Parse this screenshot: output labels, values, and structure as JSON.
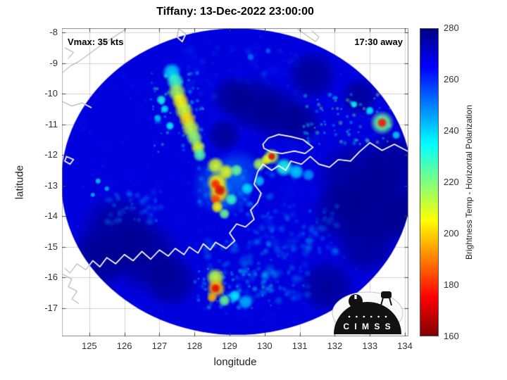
{
  "chart_data": {
    "type": "heatmap",
    "title": "Tiffany: 13-Dec-2022 23:00:00",
    "xlabel": "longitude",
    "ylabel": "latitude",
    "xlim": [
      124.22,
      134.1
    ],
    "ylim": [
      -17.92,
      -7.86
    ],
    "x_ticks": [
      125,
      126,
      127,
      128,
      129,
      130,
      131,
      132,
      133,
      134
    ],
    "y_ticks": [
      -8,
      -9,
      -10,
      -11,
      -12,
      -13,
      -14,
      -15,
      -16,
      -17
    ],
    "annotations": {
      "vmax": "Vmax: 35 kts",
      "eta": "17:30 away"
    },
    "grid_color": "#d2d2d2",
    "coast_color_inside": "#ffffff",
    "coast_color_outside": "#9a9a9a",
    "colorbar": {
      "label": "Brightness Temp - Horizontal Polarization",
      "range": [
        160,
        280
      ],
      "ticks": [
        280,
        260,
        240,
        220,
        200,
        180,
        160
      ],
      "stops": [
        {
          "color": "#000083",
          "pos": 0
        },
        {
          "color": "#0000ff",
          "pos": 12.5
        },
        {
          "color": "#00ffff",
          "pos": 37.5
        },
        {
          "color": "#ffff00",
          "pos": 62.5
        },
        {
          "color": "#ff0000",
          "pos": 87.5
        },
        {
          "color": "#800000",
          "pos": 100
        }
      ]
    },
    "swath": {
      "center_lon": 129.2,
      "center_lat": -12.87,
      "radius_deg": 5.0,
      "background_temp": 269
    },
    "dark_temp": 278.5,
    "dark_alpha": 0.8,
    "dark_regions": [
      [
        125.8,
        -14.6,
        1.3
      ],
      [
        126.6,
        -15.3,
        1.2
      ],
      [
        125.2,
        -15.5,
        1.0
      ],
      [
        127.3,
        -16.1,
        0.9
      ],
      [
        132.6,
        -12.8,
        1.3
      ],
      [
        133.3,
        -13.6,
        1.3
      ],
      [
        132.2,
        -13.9,
        1.0
      ],
      [
        133.7,
        -12.2,
        1.0
      ],
      [
        132.9,
        -14.9,
        1.0
      ],
      [
        133.9,
        -14.0,
        0.9
      ],
      [
        131.8,
        -16.3,
        0.9
      ],
      [
        129.7,
        -10.35,
        0.95
      ],
      [
        130.4,
        -10.65,
        0.9
      ],
      [
        129.1,
        -10.1,
        0.7
      ],
      [
        131.0,
        -10.95,
        0.7
      ],
      [
        131.35,
        -9.4,
        0.8
      ],
      [
        132.7,
        -10.1,
        0.6
      ],
      [
        128.85,
        -11.35,
        0.55
      ]
    ],
    "convective_features": [
      [
        127.35,
        -9.3,
        0.3,
        240
      ],
      [
        127.45,
        -9.6,
        0.28,
        228
      ],
      [
        127.5,
        -9.95,
        0.3,
        215
      ],
      [
        127.6,
        -10.25,
        0.28,
        205
      ],
      [
        127.7,
        -10.55,
        0.3,
        210
      ],
      [
        127.8,
        -10.85,
        0.28,
        202
      ],
      [
        127.9,
        -11.15,
        0.3,
        212
      ],
      [
        128.0,
        -11.45,
        0.26,
        218
      ],
      [
        128.1,
        -11.75,
        0.24,
        210
      ],
      [
        128.15,
        -12.0,
        0.22,
        225
      ],
      [
        127.05,
        -10.2,
        0.16,
        232
      ],
      [
        127.15,
        -10.5,
        0.14,
        238
      ],
      [
        126.95,
        -10.8,
        0.13,
        242
      ],
      [
        127.3,
        -11.05,
        0.14,
        235
      ],
      [
        128.8,
        -13.0,
        0.95,
        248,
        0.5
      ],
      [
        129.3,
        -12.55,
        0.7,
        250,
        0.45
      ],
      [
        128.6,
        -12.35,
        0.28,
        210
      ],
      [
        128.9,
        -12.55,
        0.25,
        208
      ],
      [
        129.2,
        -12.5,
        0.2,
        222
      ],
      [
        128.65,
        -12.9,
        0.34,
        205
      ],
      [
        128.7,
        -13.25,
        0.34,
        200
      ],
      [
        128.6,
        -12.95,
        0.17,
        178
      ],
      [
        128.72,
        -13.15,
        0.19,
        170
      ],
      [
        128.6,
        -13.45,
        0.17,
        182
      ],
      [
        128.65,
        -13.7,
        0.2,
        205
      ],
      [
        128.85,
        -13.92,
        0.18,
        222
      ],
      [
        129.05,
        -13.45,
        0.2,
        228
      ],
      [
        129.5,
        -13.1,
        0.2,
        238
      ],
      [
        129.85,
        -12.85,
        0.18,
        242
      ],
      [
        129.85,
        -12.3,
        0.22,
        215
      ],
      [
        130.05,
        -12.15,
        0.18,
        205
      ],
      [
        130.2,
        -12.05,
        0.26,
        212
      ],
      [
        130.2,
        -12.05,
        0.13,
        172
      ],
      [
        130.55,
        -12.4,
        0.3,
        232
      ],
      [
        130.9,
        -12.55,
        0.25,
        240
      ],
      [
        131.25,
        -12.65,
        0.2,
        247
      ],
      [
        133.35,
        -10.95,
        0.38,
        222
      ],
      [
        133.35,
        -10.95,
        0.16,
        176
      ],
      [
        133.0,
        -10.55,
        0.14,
        236
      ],
      [
        133.75,
        -11.35,
        0.14,
        240
      ],
      [
        132.55,
        -10.35,
        0.12,
        233
      ],
      [
        128.6,
        -16.0,
        0.3,
        212
      ],
      [
        128.62,
        -16.35,
        0.3,
        196
      ],
      [
        128.6,
        -16.35,
        0.15,
        172
      ],
      [
        128.5,
        -16.65,
        0.17,
        196
      ],
      [
        128.85,
        -16.75,
        0.2,
        222
      ],
      [
        129.15,
        -16.6,
        0.2,
        236
      ],
      [
        129.45,
        -16.8,
        0.24,
        244
      ],
      [
        125.25,
        -12.85,
        0.1,
        240
      ],
      [
        125.5,
        -13.1,
        0.09,
        244
      ],
      [
        125.1,
        -13.3,
        0.08,
        242
      ],
      [
        129.6,
        -8.8,
        0.12,
        252
      ],
      [
        130.1,
        -8.6,
        0.1,
        254
      ]
    ],
    "noise_seed": 42,
    "noise_base": [
      [
        129.2,
        -12.87,
        4.6,
        4.6,
        320,
        258,
        270,
        6,
        16,
        0.15
      ],
      [
        129.2,
        -12.87,
        4.8,
        4.8,
        500,
        252,
        268,
        1.5,
        4,
        0.22
      ],
      [
        129.3,
        -9.3,
        1.8,
        0.9,
        60,
        252,
        264,
        4,
        9,
        0.25
      ]
    ],
    "noise_speckle": [
      [
        129.8,
        -15.8,
        1.5,
        1.0,
        110,
        236,
        254,
        3,
        9,
        0.3
      ],
      [
        130.8,
        -14.4,
        1.3,
        0.8,
        80,
        240,
        255,
        3,
        8,
        0.3
      ],
      [
        126.3,
        -13.7,
        0.8,
        0.55,
        45,
        240,
        254,
        3,
        7,
        0.32
      ],
      [
        132.4,
        -10.8,
        1.3,
        0.85,
        70,
        218,
        246,
        2,
        4.5,
        0.5
      ],
      [
        127.5,
        -10.6,
        0.75,
        1.3,
        60,
        222,
        248,
        2,
        4.5,
        0.5
      ],
      [
        129.1,
        -16.35,
        1.1,
        0.65,
        55,
        228,
        248,
        2,
        5,
        0.45
      ],
      [
        129.2,
        -13.2,
        1.1,
        0.8,
        50,
        235,
        252,
        3,
        7,
        0.3
      ]
    ],
    "coastlines": [
      [
        [
          126.05,
          -7.88
        ],
        [
          125.7,
          -8.15
        ],
        [
          125.35,
          -8.4
        ],
        [
          125.0,
          -8.7
        ],
        [
          124.7,
          -8.95
        ],
        [
          124.45,
          -9.1
        ],
        [
          124.25,
          -9.3
        ]
      ],
      [
        [
          124.3,
          -8.5
        ],
        [
          124.55,
          -8.65
        ],
        [
          124.4,
          -8.85
        ]
      ],
      [
        [
          124.22,
          -10.25
        ],
        [
          124.5,
          -10.4
        ],
        [
          124.8,
          -10.3
        ],
        [
          125.05,
          -10.45
        ]
      ],
      [
        [
          127.55,
          -7.88
        ],
        [
          127.75,
          -8.05
        ],
        [
          127.65,
          -8.3
        ],
        [
          127.5,
          -8.15
        ],
        [
          127.55,
          -7.88
        ]
      ],
      [
        [
          130.95,
          -7.9
        ],
        [
          131.2,
          -8.1
        ],
        [
          131.45,
          -8.3
        ],
        [
          131.55,
          -8.15
        ],
        [
          131.35,
          -7.95
        ]
      ],
      [
        [
          129.95,
          -11.65
        ],
        [
          130.1,
          -11.45
        ],
        [
          130.4,
          -11.33
        ],
        [
          130.75,
          -11.4
        ],
        [
          131.1,
          -11.5
        ],
        [
          131.38,
          -11.75
        ],
        [
          131.15,
          -11.95
        ],
        [
          130.85,
          -11.87
        ],
        [
          130.5,
          -11.95
        ],
        [
          130.2,
          -11.9
        ],
        [
          129.98,
          -11.78
        ],
        [
          129.95,
          -11.65
        ]
      ],
      [
        [
          134.12,
          -11.9
        ],
        [
          133.7,
          -11.65
        ],
        [
          133.35,
          -11.85
        ],
        [
          133.0,
          -11.6
        ],
        [
          132.7,
          -11.9
        ],
        [
          132.45,
          -12.2
        ],
        [
          132.1,
          -12.15
        ],
        [
          131.85,
          -12.4
        ],
        [
          131.55,
          -12.3
        ],
        [
          131.3,
          -12.05
        ],
        [
          131.05,
          -12.3
        ],
        [
          130.75,
          -12.2
        ],
        [
          130.6,
          -12.5
        ],
        [
          130.4,
          -12.35
        ],
        [
          130.2,
          -12.5
        ],
        [
          129.95,
          -12.3
        ],
        [
          129.8,
          -12.55
        ],
        [
          129.7,
          -12.95
        ],
        [
          129.9,
          -13.25
        ],
        [
          129.8,
          -13.55
        ],
        [
          129.6,
          -13.8
        ],
        [
          129.7,
          -14.1
        ],
        [
          129.45,
          -14.35
        ],
        [
          129.2,
          -14.25
        ],
        [
          129.0,
          -14.55
        ],
        [
          129.15,
          -14.8
        ],
        [
          128.9,
          -15.05
        ],
        [
          128.6,
          -14.85
        ],
        [
          128.45,
          -15.1
        ],
        [
          128.25,
          -14.9
        ],
        [
          128.1,
          -15.2
        ],
        [
          127.85,
          -15.0
        ],
        [
          127.7,
          -15.25
        ],
        [
          127.45,
          -15.05
        ],
        [
          127.25,
          -15.3
        ],
        [
          127.0,
          -15.1
        ],
        [
          126.75,
          -15.4
        ],
        [
          126.5,
          -15.15
        ],
        [
          126.25,
          -15.45
        ],
        [
          126.0,
          -15.25
        ],
        [
          125.75,
          -15.55
        ],
        [
          125.5,
          -15.35
        ],
        [
          125.3,
          -15.65
        ],
        [
          125.1,
          -15.45
        ],
        [
          124.9,
          -15.75
        ],
        [
          124.65,
          -15.55
        ],
        [
          124.45,
          -15.85
        ],
        [
          124.3,
          -15.7
        ]
      ],
      [
        [
          124.25,
          -15.9
        ],
        [
          124.5,
          -16.05
        ],
        [
          124.4,
          -16.3
        ],
        [
          124.65,
          -16.45
        ],
        [
          124.5,
          -16.7
        ],
        [
          124.7,
          -16.85
        ]
      ],
      [
        [
          124.35,
          -12.05
        ],
        [
          124.55,
          -12.15
        ],
        [
          124.45,
          -12.3
        ],
        [
          124.3,
          -12.2
        ],
        [
          124.35,
          -12.05
        ]
      ]
    ]
  },
  "logo": {
    "text": "C I M S S"
  }
}
